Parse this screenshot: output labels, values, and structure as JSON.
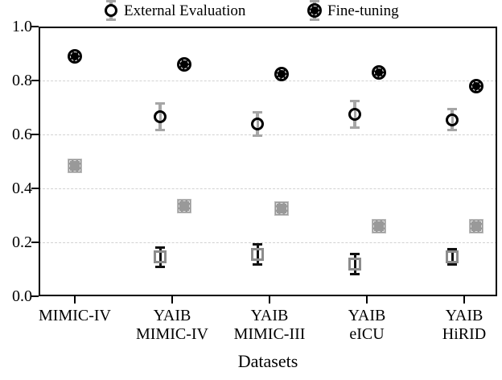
{
  "legend": {
    "items": [
      {
        "label": "External Evaluation",
        "marker": "open-circle"
      },
      {
        "label": "Fine-tuning",
        "marker": "filled-circle"
      }
    ]
  },
  "chart_data": {
    "type": "scatter",
    "title": "",
    "xlabel": "Datasets",
    "ylabel": "",
    "ylim": [
      0.0,
      1.0
    ],
    "yticks": [
      0.0,
      0.2,
      0.4,
      0.6,
      0.8,
      1.0
    ],
    "ytick_labels": [
      "0.0",
      "0.2",
      "0.4",
      "0.6",
      "0.8",
      "1.0"
    ],
    "grid": "horizontal dashed gridlines at 0.2, 0.4, 0.6, 0.8",
    "legend_position": "top-center, outside axes, no frame",
    "categories": [
      "MIMIC-IV",
      "YAIB MIMIC-IV",
      "YAIB MIMIC-III",
      "YAIB eICU",
      "YAIB HiRID"
    ],
    "category_label_lines": [
      [
        "MIMIC-IV"
      ],
      [
        "YAIB",
        "MIMIC-IV"
      ],
      [
        "YAIB",
        "MIMIC-III"
      ],
      [
        "YAIB",
        "eICU"
      ],
      [
        "YAIB",
        "HiRID"
      ]
    ],
    "series": [
      {
        "name": "External Evaluation",
        "marker": "open-circle",
        "dodge": "left",
        "values": [
          null,
          0.665,
          0.64,
          0.675,
          0.655
        ],
        "errors": [
          null,
          0.05,
          0.045,
          0.05,
          0.04
        ]
      },
      {
        "name": "Fine-tuning",
        "marker": "filled-circle",
        "dodge": "right",
        "values": [
          0.89,
          0.86,
          0.825,
          0.83,
          0.78
        ],
        "errors": [
          null,
          null,
          null,
          null,
          null
        ]
      },
      {
        "name": "external-evaluation-squares",
        "marker": "open-square",
        "dodge": "left",
        "values": [
          null,
          0.145,
          0.155,
          0.12,
          0.145
        ],
        "errors": [
          null,
          0.037,
          0.04,
          0.039,
          0.03
        ]
      },
      {
        "name": "fine-tuning-squares",
        "marker": "gray-square",
        "dodge": "right",
        "values": [
          0.485,
          0.335,
          0.325,
          0.26,
          0.26
        ],
        "errors": [
          null,
          null,
          null,
          null,
          null
        ]
      }
    ]
  },
  "colors": {
    "axis": "#000000",
    "grid": "#d2d2d2",
    "marker_black": "#000000",
    "open_square_edge": "#8c8c8c",
    "gray_square_fill": "#999999",
    "gray_square_edge": "#bcbcbc",
    "gray_errorbar": "#a6a6a6",
    "black_errorbar": "#111111",
    "background": "#ffffff"
  }
}
